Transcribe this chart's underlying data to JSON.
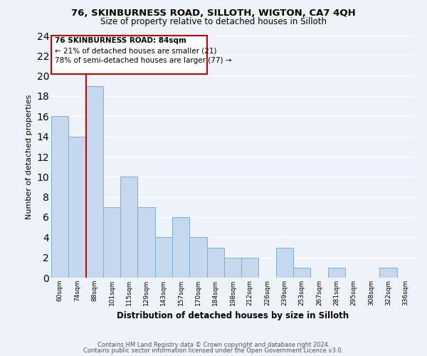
{
  "title1": "76, SKINBURNESS ROAD, SILLOTH, WIGTON, CA7 4QH",
  "title2": "Size of property relative to detached houses in Silloth",
  "xlabel": "Distribution of detached houses by size in Silloth",
  "ylabel": "Number of detached properties",
  "bin_labels": [
    "60sqm",
    "74sqm",
    "88sqm",
    "101sqm",
    "115sqm",
    "129sqm",
    "143sqm",
    "157sqm",
    "170sqm",
    "184sqm",
    "198sqm",
    "212sqm",
    "226sqm",
    "239sqm",
    "253sqm",
    "267sqm",
    "281sqm",
    "295sqm",
    "308sqm",
    "322sqm",
    "336sqm"
  ],
  "bar_values": [
    16,
    14,
    19,
    7,
    10,
    7,
    4,
    6,
    4,
    3,
    2,
    2,
    0,
    3,
    1,
    0,
    1,
    0,
    0,
    1,
    0
  ],
  "bar_color": "#c5d8ed",
  "bar_edge_color": "#7bafd4",
  "vline_color": "#cc0000",
  "vline_x_index": 2,
  "annotation_title": "76 SKINBURNESS ROAD: 84sqm",
  "annotation_line1": "← 21% of detached houses are smaller (21)",
  "annotation_line2": "78% of semi-detached houses are larger (77) →",
  "annotation_box_color": "#ffffff",
  "annotation_box_edge": "#cc0000",
  "ylim": [
    0,
    24
  ],
  "yticks": [
    0,
    2,
    4,
    6,
    8,
    10,
    12,
    14,
    16,
    18,
    20,
    22,
    24
  ],
  "footer1": "Contains HM Land Registry data © Crown copyright and database right 2024.",
  "footer2": "Contains public sector information licensed under the Open Government Licence v3.0.",
  "background_color": "#eef2f9",
  "grid_color": "#ffffff"
}
